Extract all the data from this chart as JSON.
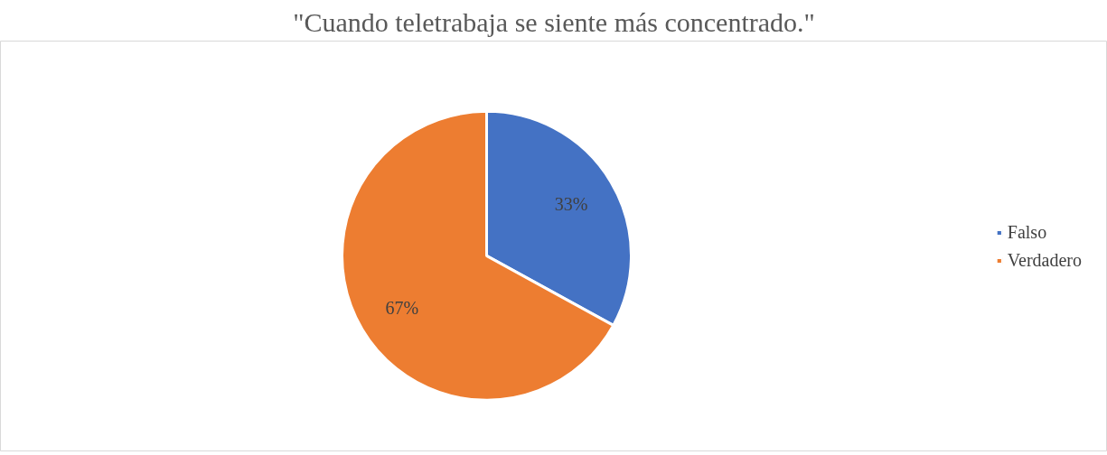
{
  "chart_data": {
    "type": "pie",
    "title": "\"Cuando teletrabaja se siente más concentrado.\"",
    "categories": [
      "Falso",
      "Verdadero"
    ],
    "values": [
      33,
      67
    ],
    "colors": [
      "#4472c4",
      "#ed7d31"
    ],
    "value_labels": [
      "33%",
      "67%"
    ],
    "legend": "right"
  }
}
